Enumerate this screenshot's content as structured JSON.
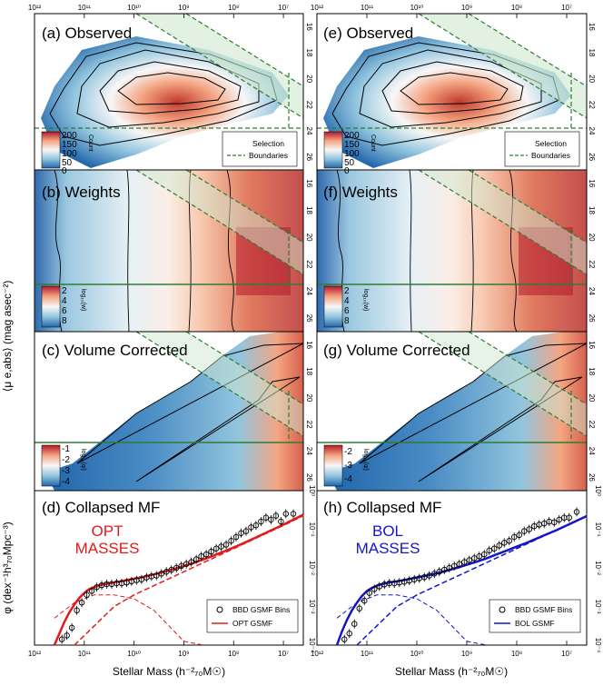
{
  "figure": {
    "y_axis_label_top": "⟨μ e,abs⟩ (mag asec⁻²)",
    "x_axis_label": "Stellar Mass (h⁻²₇₀M☉)",
    "y_axis_label_bottom": "φ (dex⁻¹h³₇₀Mpc⁻³)"
  },
  "columns": [
    {
      "id": "left",
      "rows": [
        {
          "title": "(a) Observed",
          "cbar_label": "Count",
          "cbar_ticks": [
            "200",
            "150",
            "100",
            "50",
            "0"
          ],
          "legend": {
            "line1": "Selection",
            "line2": "Boundaries"
          },
          "colors": {
            "low": "#2166ac",
            "high": "#b2182b"
          }
        },
        {
          "title": "(b) Weights",
          "cbar_label": "log₁₀(w)",
          "cbar_ticks": [
            "2",
            "4",
            "6",
            "8"
          ]
        },
        {
          "title": "(c) Volume Corrected",
          "cbar_label": "log₁₀(φ)",
          "cbar_ticks": [
            "-1",
            "-2",
            "-3",
            "-4"
          ]
        },
        {
          "title": "(d) Collapsed MF",
          "mass_label": [
            "OPT",
            "MASSES"
          ],
          "mass_color": "#e31a1c",
          "legend": {
            "points": "BBD GSMF Bins",
            "line": "OPT GSMF"
          }
        }
      ]
    },
    {
      "id": "right",
      "rows": [
        {
          "title": "(e) Observed",
          "cbar_label": "Count",
          "cbar_ticks": [
            "200",
            "150",
            "100",
            "50",
            "0"
          ],
          "legend": {
            "line1": "Selection",
            "line2": "Boundaries"
          }
        },
        {
          "title": "(f) Weights",
          "cbar_label": "log₁₀(w)",
          "cbar_ticks": [
            "2",
            "4",
            "6",
            "8"
          ]
        },
        {
          "title": "(g) Volume Corrected",
          "cbar_label": "log₁₀(φ)",
          "cbar_ticks": [
            "-2",
            "-3",
            "-4"
          ]
        },
        {
          "title": "(h) Collapsed MF",
          "mass_label": [
            "BOL",
            "MASSES"
          ],
          "mass_color": "#1515c8",
          "legend": {
            "points": "BBD GSMF Bins",
            "line": "BOL GSMF"
          }
        }
      ]
    }
  ],
  "axes": {
    "top_xticks": [
      "10¹²",
      "10¹¹",
      "10¹⁰",
      "10⁹",
      "10⁸",
      "10⁷"
    ],
    "bottom_xticks": [
      "10¹²",
      "10¹¹",
      "10¹⁰",
      "10⁹",
      "10⁸",
      "10⁷"
    ],
    "mu_ticks": [
      "16",
      "18",
      "20",
      "22",
      "24",
      "26"
    ],
    "phi_ticks": [
      "10⁰",
      "10⁻¹",
      "10⁻²",
      "10⁻³",
      "10⁻⁴"
    ]
  },
  "chart_data": [
    {
      "type": "scatter",
      "panel": "d",
      "title": "(d) Collapsed MF",
      "xlabel": "Stellar Mass (h⁻²₇₀M☉)",
      "ylabel": "φ (dex⁻¹h³₇₀Mpc⁻³)",
      "x_log10_range": [
        12,
        6.6
      ],
      "y_log10_range": [
        -4,
        0
      ],
      "series": [
        {
          "name": "BBD GSMF Bins",
          "x": [
            11.45,
            11.35,
            11.25,
            11.15,
            11.05,
            10.95,
            10.85,
            10.75,
            10.65,
            10.55,
            10.45,
            10.35,
            10.25,
            10.15,
            10.05,
            9.95,
            9.85,
            9.75,
            9.65,
            9.55,
            9.45,
            9.35,
            9.25,
            9.15,
            9.05,
            8.95,
            8.85,
            8.75,
            8.65,
            8.55,
            8.45,
            8.35,
            8.25,
            8.15,
            8.05,
            7.95,
            7.85,
            7.75,
            7.65,
            7.55,
            7.45,
            7.35,
            7.25,
            7.15,
            7.05,
            6.95,
            6.8
          ],
          "y": [
            -3.85,
            -3.75,
            -3.55,
            -3.1,
            -2.9,
            -2.7,
            -2.6,
            -2.5,
            -2.45,
            -2.42,
            -2.42,
            -2.4,
            -2.4,
            -2.38,
            -2.35,
            -2.32,
            -2.3,
            -2.25,
            -2.22,
            -2.2,
            -2.15,
            -2.1,
            -2.05,
            -2.0,
            -1.95,
            -1.9,
            -1.85,
            -1.78,
            -1.7,
            -1.65,
            -1.58,
            -1.5,
            -1.45,
            -1.4,
            -1.3,
            -1.2,
            -1.1,
            -1.05,
            -0.95,
            -0.9,
            -0.8,
            -0.7,
            -0.75,
            -0.65,
            -0.8,
            -0.6,
            -0.6
          ]
        },
        {
          "name": "OPT GSMF",
          "x": [
            11.6,
            11.5,
            11.4,
            11.3,
            11.2,
            11.1,
            11.0,
            10.9,
            10.8,
            10.7,
            10.6,
            10.5,
            10.4,
            10.2,
            10.0,
            9.8,
            9.6,
            9.4,
            9.2,
            9.0,
            8.8,
            8.6,
            8.4,
            8.2,
            8.0,
            7.8,
            7.6,
            7.4,
            7.2,
            7.0,
            6.8,
            6.6
          ],
          "y": [
            -4.0,
            -3.7,
            -3.4,
            -3.15,
            -2.95,
            -2.78,
            -2.65,
            -2.55,
            -2.5,
            -2.45,
            -2.42,
            -2.4,
            -2.38,
            -2.33,
            -2.28,
            -2.23,
            -2.17,
            -2.1,
            -2.03,
            -1.95,
            -1.87,
            -1.78,
            -1.68,
            -1.58,
            -1.47,
            -1.36,
            -1.24,
            -1.12,
            -1.0,
            -0.88,
            -0.75,
            -0.62
          ]
        }
      ],
      "annotations": [
        "OPT MASSES"
      ]
    },
    {
      "type": "scatter",
      "panel": "h",
      "title": "(h) Collapsed MF",
      "xlabel": "Stellar Mass (h⁻²₇₀M☉)",
      "x_log10_range": [
        12,
        6.6
      ],
      "y_log10_range": [
        -4,
        0
      ],
      "series": [
        {
          "name": "BBD GSMF Bins",
          "x": [
            11.45,
            11.35,
            11.25,
            11.15,
            11.05,
            10.95,
            10.85,
            10.75,
            10.65,
            10.55,
            10.45,
            10.35,
            10.25,
            10.15,
            10.05,
            9.95,
            9.85,
            9.75,
            9.65,
            9.55,
            9.45,
            9.35,
            9.25,
            9.15,
            9.05,
            8.95,
            8.85,
            8.75,
            8.65,
            8.55,
            8.45,
            8.35,
            8.25,
            8.15,
            8.05,
            7.95,
            7.85,
            7.75,
            7.65,
            7.55,
            7.45,
            7.35,
            7.25,
            7.15,
            7.05,
            6.95,
            6.8
          ],
          "y": [
            -3.85,
            -3.7,
            -3.45,
            -3.05,
            -2.85,
            -2.65,
            -2.55,
            -2.48,
            -2.43,
            -2.4,
            -2.4,
            -2.38,
            -2.36,
            -2.33,
            -2.3,
            -2.27,
            -2.24,
            -2.2,
            -2.15,
            -2.1,
            -2.05,
            -2.0,
            -1.95,
            -1.9,
            -1.85,
            -1.8,
            -1.75,
            -1.7,
            -1.65,
            -1.55,
            -1.5,
            -1.42,
            -1.35,
            -1.3,
            -1.2,
            -1.15,
            -1.05,
            -1.0,
            -0.92,
            -0.88,
            -0.85,
            -0.8,
            -0.82,
            -0.75,
            -0.7,
            -0.7,
            -0.55
          ]
        },
        {
          "name": "BOL GSMF",
          "x": [
            11.6,
            11.5,
            11.4,
            11.3,
            11.2,
            11.1,
            11.0,
            10.9,
            10.8,
            10.7,
            10.6,
            10.5,
            10.4,
            10.2,
            10.0,
            9.8,
            9.6,
            9.4,
            9.2,
            9.0,
            8.8,
            8.6,
            8.4,
            8.2,
            8.0,
            7.8,
            7.6,
            7.4,
            7.2,
            7.0,
            6.8,
            6.6
          ],
          "y": [
            -4.0,
            -3.65,
            -3.35,
            -3.1,
            -2.9,
            -2.73,
            -2.6,
            -2.52,
            -2.46,
            -2.42,
            -2.39,
            -2.37,
            -2.35,
            -2.3,
            -2.25,
            -2.2,
            -2.14,
            -2.07,
            -2.0,
            -1.92,
            -1.84,
            -1.75,
            -1.65,
            -1.55,
            -1.45,
            -1.35,
            -1.24,
            -1.13,
            -1.02,
            -0.9,
            -0.78,
            -0.66
          ]
        }
      ],
      "annotations": [
        "BOL MASSES"
      ]
    }
  ]
}
